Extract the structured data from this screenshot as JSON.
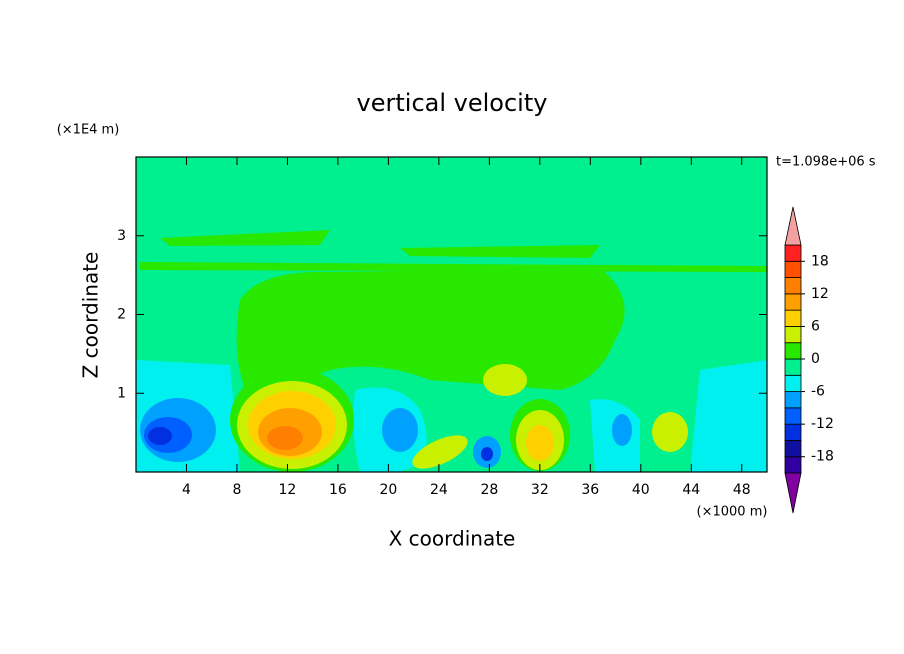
{
  "chart_data": {
    "type": "contour",
    "title": "vertical velocity",
    "x_label": "X coordinate",
    "y_label": "Z coordinate",
    "x_unit_label": "(×1000 m)",
    "y_unit_label": "(×1E4 m)",
    "time_label": "t=1.098e+06 s",
    "xlim": [
      0,
      50
    ],
    "xticks": [
      4,
      8,
      12,
      16,
      20,
      24,
      28,
      32,
      36,
      40,
      44,
      48
    ],
    "ylim": [
      0,
      4
    ],
    "yticks": [
      1,
      2,
      3
    ],
    "levels": [
      -21,
      -18,
      -15,
      -12,
      -9,
      -6,
      -3,
      0,
      3,
      6,
      9,
      12,
      15,
      18,
      21
    ],
    "level_colors": [
      "#3000a0",
      "#1010a0",
      "#0030e0",
      "#0060ff",
      "#00a0ff",
      "#00f0f0",
      "#00f090",
      "#28e800",
      "#c8f000",
      "#ffd000",
      "#ffa000",
      "#ff8000",
      "#ff5000",
      "#ff2020"
    ],
    "under_color": "#8000a0",
    "over_color": "#f4a0a0",
    "colorbar_ticks": [
      -18,
      -12,
      -6,
      0,
      6,
      12,
      18
    ]
  }
}
